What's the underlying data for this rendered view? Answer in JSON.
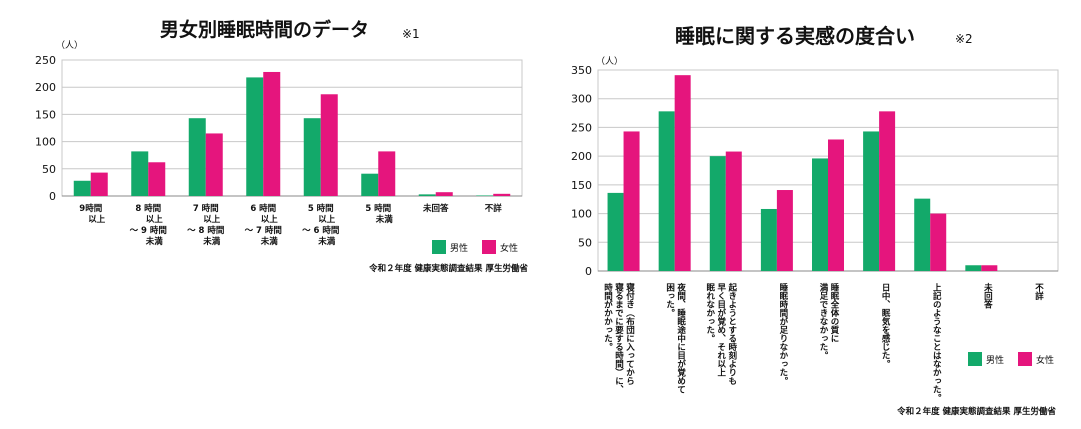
{
  "colors": {
    "male": "#13a96a",
    "female": "#e5157d",
    "grid": "#c8c8c8",
    "axis": "#888888"
  },
  "chart_data": [
    {
      "type": "bar",
      "title": "男女別睡眠時間のデータ",
      "title_note": "※1",
      "ylabel": "（人）",
      "ylim": [
        0,
        250
      ],
      "yticks": [
        0,
        50,
        100,
        150,
        200,
        250
      ],
      "categories": [
        [
          "9時間",
          "以上"
        ],
        [
          "8 時間",
          "以上",
          "～ 9 時間",
          "未満"
        ],
        [
          "7 時間",
          "以上",
          "～ 8 時間",
          "未満"
        ],
        [
          "6 時間",
          "以上",
          "～ 7 時間",
          "未満"
        ],
        [
          "5 時間",
          "以上",
          "～ 6 時間",
          "未満"
        ],
        [
          "5 時間",
          "未満"
        ],
        [
          "未回答"
        ],
        [
          "不詳"
        ]
      ],
      "series": [
        {
          "name": "男性",
          "values": [
            28,
            82,
            143,
            218,
            143,
            41,
            3,
            1
          ]
        },
        {
          "name": "女性",
          "values": [
            43,
            62,
            115,
            228,
            187,
            82,
            7,
            4
          ]
        }
      ],
      "source": "令和２年度 健康実態調査結果 厚生労働省",
      "legend": "bottom-right",
      "grid": true
    },
    {
      "type": "bar",
      "title": "睡眠に関する実感の度合い",
      "title_note": "※2",
      "ylabel": "（人）",
      "ylim": [
        0,
        350
      ],
      "yticks": [
        0,
        50,
        100,
        150,
        200,
        250,
        300,
        350
      ],
      "categories": [
        [
          "寝付き（布団に入ってから",
          "寝るまでに要する時間）に、",
          "時間がかかった。"
        ],
        [
          "夜間、睡眠途中に目が覚めて",
          "困った。"
        ],
        [
          "起きようとする時刻よりも",
          "早く目が覚め、それ以上",
          "眠れなかった。"
        ],
        [
          "睡眠時間が足りなかった。"
        ],
        [
          "睡眠全体の質に",
          "満足できなかった。"
        ],
        [
          "日中、眠気を感じた。"
        ],
        [
          "上記のようなことはなかった。"
        ],
        [
          "未回答"
        ],
        [
          "不詳"
        ]
      ],
      "series": [
        {
          "name": "男性",
          "values": [
            136,
            278,
            200,
            108,
            196,
            243,
            126,
            10,
            0
          ]
        },
        {
          "name": "女性",
          "values": [
            243,
            341,
            208,
            141,
            229,
            278,
            100,
            10,
            0
          ]
        }
      ],
      "source": "令和２年度 健康実態調査結果 厚生労働省",
      "legend": "bottom-right",
      "grid": true
    }
  ]
}
